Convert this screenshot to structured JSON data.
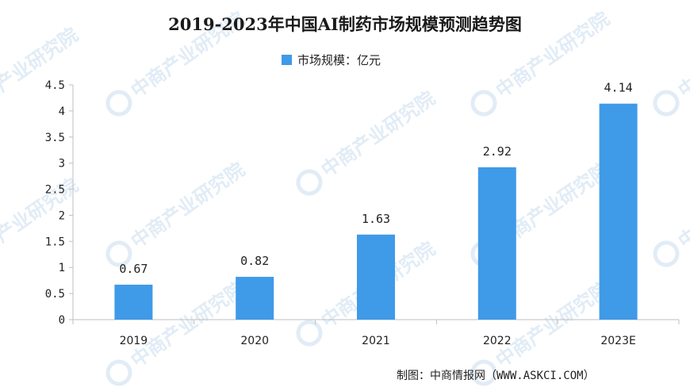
{
  "chart_data": {
    "type": "bar",
    "title": "2019-2023年中国AI制药市场规模预测趋势图",
    "legend": {
      "label": "市场规模：亿元",
      "position": "top-center"
    },
    "categories": [
      "2019",
      "2020",
      "2021",
      "2022",
      "2023E"
    ],
    "series": [
      {
        "name": "市场规模：亿元",
        "values": [
          0.67,
          0.82,
          1.63,
          2.92,
          4.14
        ]
      }
    ],
    "data_labels": [
      "0.67",
      "0.82",
      "1.63",
      "2.92",
      "4.14"
    ],
    "yticks": [
      "0",
      "0.5",
      "1",
      "1.5",
      "2",
      "2.5",
      "3",
      "3.5",
      "4",
      "4.5"
    ],
    "ylim": [
      0,
      4.5
    ],
    "grid": false,
    "colors": {
      "bar": "#3f9ae8",
      "axis": "#bfbfbf"
    }
  },
  "source": "制图：中商情报网（WWW.ASKCI.COM）",
  "watermark": "中商产业研究院"
}
